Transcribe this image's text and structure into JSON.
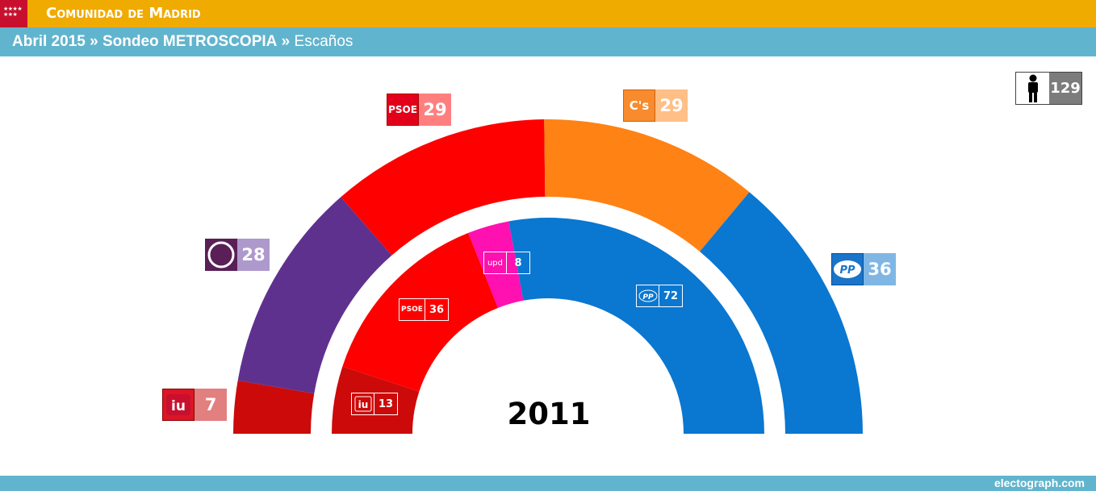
{
  "header": {
    "region": "Comunidad de Madrid",
    "date": "Abril 2015",
    "pollster": "Sondeo METROSCOPIA",
    "metric": "Escaños",
    "separator": "»"
  },
  "footer": {
    "credit": "electograph.com"
  },
  "total_seats": "129",
  "chart_data": [
    {
      "type": "pie",
      "title": "Abril 2015 » Sondeo METROSCOPIA",
      "ring": "outer",
      "series": [
        {
          "name": "IU",
          "value": 7,
          "color": "#cc0a0a",
          "label_color": "#e27f7f",
          "logo_color": "#dd1526"
        },
        {
          "name": "Podemos",
          "value": 28,
          "color": "#5f318f",
          "label_color": "#ae99cd",
          "logo_color": "#5a1f56"
        },
        {
          "name": "PSOE",
          "value": 29,
          "color": "#ff0000",
          "label_color": "#ff7f7f",
          "logo_color": "#e2001a"
        },
        {
          "name": "C's",
          "value": 29,
          "color": "#ff8215",
          "label_color": "#ffbf86",
          "logo_color": "#f78b2d"
        },
        {
          "name": "PP",
          "value": 36,
          "color": "#0a77d1",
          "label_color": "#7fb6e4",
          "logo_color": "#1a74c9"
        }
      ]
    },
    {
      "type": "pie",
      "title": "2011",
      "ring": "inner",
      "series": [
        {
          "name": "IU",
          "value": 13,
          "color": "#cc0a0a"
        },
        {
          "name": "PSOE",
          "value": 36,
          "color": "#ff0000"
        },
        {
          "name": "UPyD",
          "value": 8,
          "color": "#ff10b0"
        },
        {
          "name": "PP",
          "value": 72,
          "color": "#0a77d1"
        }
      ]
    }
  ],
  "labels": {
    "outer": {
      "iu": {
        "logo": "iu",
        "value": "7"
      },
      "podemos": {
        "logo": "",
        "value": "28"
      },
      "psoe": {
        "logo": "PSOE",
        "value": "29"
      },
      "cs": {
        "logo": "C's",
        "value": "29"
      },
      "pp": {
        "logo": "PP",
        "value": "36"
      }
    },
    "inner": {
      "iu": {
        "logo": "iu",
        "value": "13"
      },
      "psoe": {
        "logo": "PSOE",
        "value": "36"
      },
      "upyd": {
        "logo": "upd",
        "value": "8"
      },
      "pp": {
        "logo": "PP",
        "value": "72"
      }
    }
  }
}
